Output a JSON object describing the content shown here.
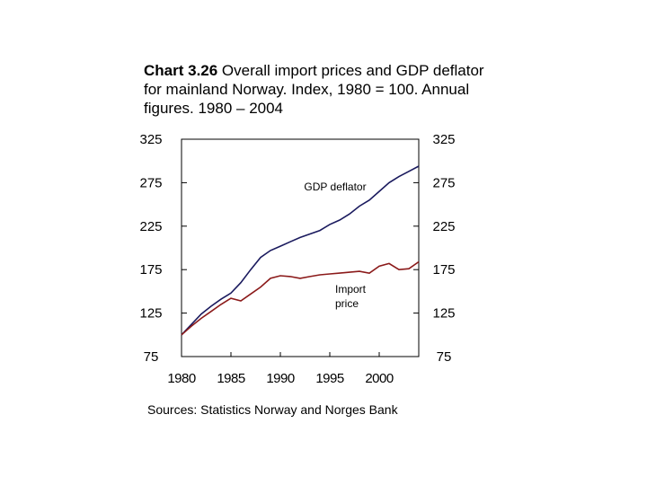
{
  "title": {
    "number": "Chart 3.26",
    "text": " Overall import prices and GDP deflator for mainland Norway. Index, 1980 = 100. Annual figures. 1980 – 2004"
  },
  "source": "Sources: Statistics Norway and Norges Bank",
  "chart_data": {
    "type": "line",
    "ylim": [
      75,
      325
    ],
    "xlim": [
      1980,
      2004
    ],
    "y_ticks": [
      325,
      275,
      225,
      175,
      125,
      75
    ],
    "y_ticks_right": [
      325,
      275,
      225,
      175,
      125,
      75
    ],
    "x_ticks": [
      "1980",
      "1985",
      "1990",
      "1995",
      "2000"
    ],
    "x": [
      1980,
      1981,
      1982,
      1983,
      1984,
      1985,
      1986,
      1987,
      1988,
      1989,
      1990,
      1991,
      1992,
      1993,
      1994,
      1995,
      1996,
      1997,
      1998,
      1999,
      2000,
      2001,
      2002,
      2003,
      2004
    ],
    "series": [
      {
        "name": "GDP deflator",
        "color": "#1a1a5e",
        "values": [
          100,
          112,
          124,
          133,
          141,
          148,
          160,
          175,
          189,
          197,
          202,
          207,
          212,
          216,
          220,
          227,
          232,
          239,
          248,
          255,
          265,
          275,
          282,
          288,
          294
        ]
      },
      {
        "name": "Import price",
        "color": "#8b1a1a",
        "values": [
          100,
          110,
          119,
          127,
          135,
          142,
          139,
          147,
          155,
          165,
          168,
          167,
          165,
          167,
          169,
          170,
          171,
          172,
          173,
          171,
          179,
          182,
          175,
          176,
          184
        ]
      }
    ]
  }
}
